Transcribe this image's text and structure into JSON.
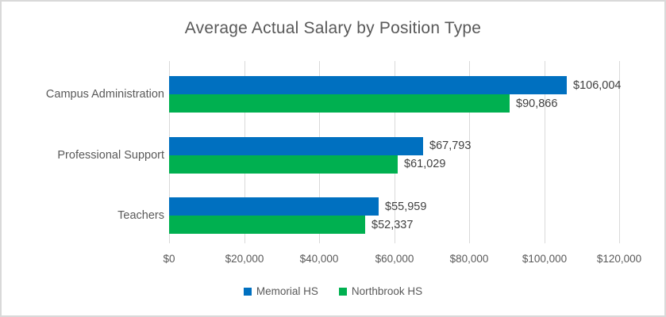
{
  "window": {
    "background": "#FFFFFF",
    "border_color": "#D9D9D9"
  },
  "chart_data": {
    "type": "bar",
    "orientation": "horizontal",
    "title": "Average Actual Salary by Position Type",
    "categories": [
      "Campus Administration",
      "Professional Support",
      "Teachers"
    ],
    "series": [
      {
        "name": "Memorial HS",
        "color": "#0070C0",
        "values": [
          106004,
          67793,
          55959
        ],
        "labels": [
          "$106,004",
          "$67,793",
          "$55,959"
        ]
      },
      {
        "name": "Northbrook HS",
        "color": "#00B050",
        "values": [
          90866,
          61029,
          52337
        ],
        "labels": [
          "$90,866",
          "$61,029",
          "$52,337"
        ]
      }
    ],
    "x_axis": {
      "min": 0,
      "max": 120000,
      "tick_step": 20000,
      "tick_labels": [
        "$0",
        "$20,000",
        "$40,000",
        "$60,000",
        "$80,000",
        "$100,000",
        "$120,000"
      ]
    },
    "legend": {
      "position": "bottom",
      "entries": [
        "Memorial HS",
        "Northbrook HS"
      ]
    },
    "grid": true,
    "gridline_color": "#D9D9D9",
    "text_colors": {
      "title": "#595959",
      "category": "#595959",
      "tick": "#595959",
      "data_label": "#404040",
      "legend": "#595959"
    }
  }
}
